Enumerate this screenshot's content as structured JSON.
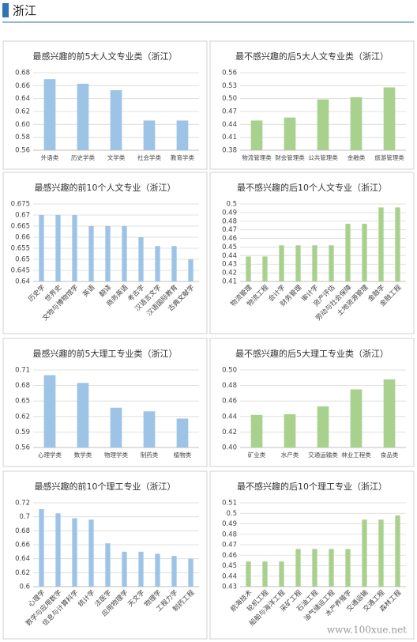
{
  "header": {
    "title": "浙江"
  },
  "watermark": "www.100xue.net",
  "chart_data": [
    {
      "type": "bar",
      "title": "最感兴趣的前5大人文专业类（浙江）",
      "color": "#9dc3e6",
      "grid": true,
      "categories": [
        "外语类",
        "历史学类",
        "文学类",
        "社会学类",
        "教育学类"
      ],
      "values": [
        0.67,
        0.663,
        0.653,
        0.606,
        0.606
      ],
      "ylim": [
        0.56,
        0.68
      ],
      "yticks": [
        0.56,
        0.58,
        {
          "value": 0.6,
          "label": "0.60"
        },
        0.62,
        0.64,
        0.66,
        0.68
      ]
    },
    {
      "type": "bar",
      "title": "最不感兴趣的后5大人文专业类（浙江）",
      "color": "#a9d18e",
      "grid": true,
      "categories": [
        "物流管理类",
        "财会管理类",
        "公共管理类",
        "金融类",
        "旅游管理类"
      ],
      "values": [
        0.449,
        0.456,
        0.498,
        0.503,
        0.526
      ],
      "ylim": [
        0.38,
        0.56
      ],
      "yticks": [
        0.38,
        0.41,
        0.44,
        0.47,
        {
          "value": 0.5,
          "label": "0.50"
        },
        0.53,
        0.56
      ]
    },
    {
      "type": "bar",
      "title": "最感兴趣的前10个人文专业（浙江）",
      "color": "#9dc3e6",
      "grid": true,
      "categories": [
        "历史学",
        "世界史",
        "文物与博物馆学",
        "英语",
        "翻译",
        "商务英语",
        "考古学",
        "汉语言文学",
        "汉语国际教育",
        "古典文献学"
      ],
      "values": [
        0.67,
        0.67,
        0.67,
        0.665,
        0.665,
        0.665,
        0.66,
        0.656,
        0.656,
        0.65
      ],
      "ylim": [
        0.64,
        0.675
      ],
      "yticks": [
        0.64,
        0.645,
        0.65,
        0.655,
        0.66,
        0.665,
        0.67,
        0.675
      ]
    },
    {
      "type": "bar",
      "title": "最不感兴趣的后10个人文专业（浙江）",
      "color": "#a9d18e",
      "grid": true,
      "categories": [
        "物流管理",
        "物流工程",
        "会计学",
        "财务管理",
        "审计学",
        "资产评估",
        "劳动与社会保障",
        "土地资源管理",
        "金融学",
        "金融工程"
      ],
      "values": [
        0.439,
        0.439,
        0.452,
        0.452,
        0.452,
        0.452,
        0.477,
        0.477,
        0.496,
        0.496
      ],
      "ylim": [
        0.41,
        0.5
      ],
      "yticks": [
        0.41,
        0.42,
        0.43,
        0.44,
        0.45,
        0.46,
        0.47,
        0.48,
        0.49,
        0.5
      ]
    },
    {
      "type": "bar",
      "title": "最感兴趣的前5大理工专业类（浙江）",
      "color": "#9dc3e6",
      "grid": true,
      "categories": [
        "心理学类",
        "数学类",
        "物理学类",
        "制药类",
        "植物类"
      ],
      "values": [
        0.7,
        0.685,
        0.637,
        0.63,
        0.616
      ],
      "ylim": [
        0.56,
        0.71
      ],
      "yticks": [
        0.56,
        0.59,
        0.62,
        0.65,
        0.68,
        0.71
      ]
    },
    {
      "type": "bar",
      "title": "最不感兴趣的后5大理工专业类（浙江）",
      "color": "#a9d18e",
      "grid": true,
      "categories": [
        "矿业类",
        "水产类",
        "交通运输类",
        "林业工程类",
        "食品类"
      ],
      "values": [
        0.442,
        0.443,
        0.453,
        0.475,
        0.488
      ],
      "ylim": [
        0.4,
        0.5
      ],
      "yticks": [
        {
          "value": 0.4,
          "label": "0.40"
        },
        0.42,
        0.44,
        0.46,
        0.48,
        {
          "value": 0.5,
          "label": "0.50"
        }
      ]
    },
    {
      "type": "bar",
      "title": "最感兴趣的前10个理工专业（浙江）",
      "color": "#9dc3e6",
      "grid": true,
      "categories": [
        "心理学",
        "数学与应用数学",
        "信息与计算科学",
        "统计学",
        "法医学",
        "应用物理学",
        "天文学",
        "物理学",
        "工程力学",
        "制药工程"
      ],
      "values": [
        0.711,
        0.705,
        0.698,
        0.696,
        0.662,
        0.65,
        0.65,
        0.647,
        0.644,
        0.64
      ],
      "ylim": [
        0.6,
        0.72
      ],
      "yticks": [
        0.6,
        0.62,
        0.64,
        0.66,
        0.68,
        0.7,
        0.72
      ]
    },
    {
      "type": "bar",
      "title": "最不感兴趣的后10个理工专业（浙江）",
      "color": "#a9d18e",
      "grid": true,
      "categories": [
        "航海技术",
        "轮机工程",
        "船舶与海洋工程",
        "采矿工程",
        "石油工程",
        "油气储运工程",
        "水产养殖学",
        "交通运输",
        "交通工程",
        "森林工程"
      ],
      "values": [
        0.454,
        0.454,
        0.454,
        0.466,
        0.466,
        0.466,
        0.466,
        0.494,
        0.494,
        0.498
      ],
      "ylim": [
        0.43,
        0.51
      ],
      "yticks": [
        0.43,
        0.44,
        0.45,
        0.46,
        0.47,
        0.48,
        0.49,
        0.5,
        0.51
      ]
    }
  ]
}
